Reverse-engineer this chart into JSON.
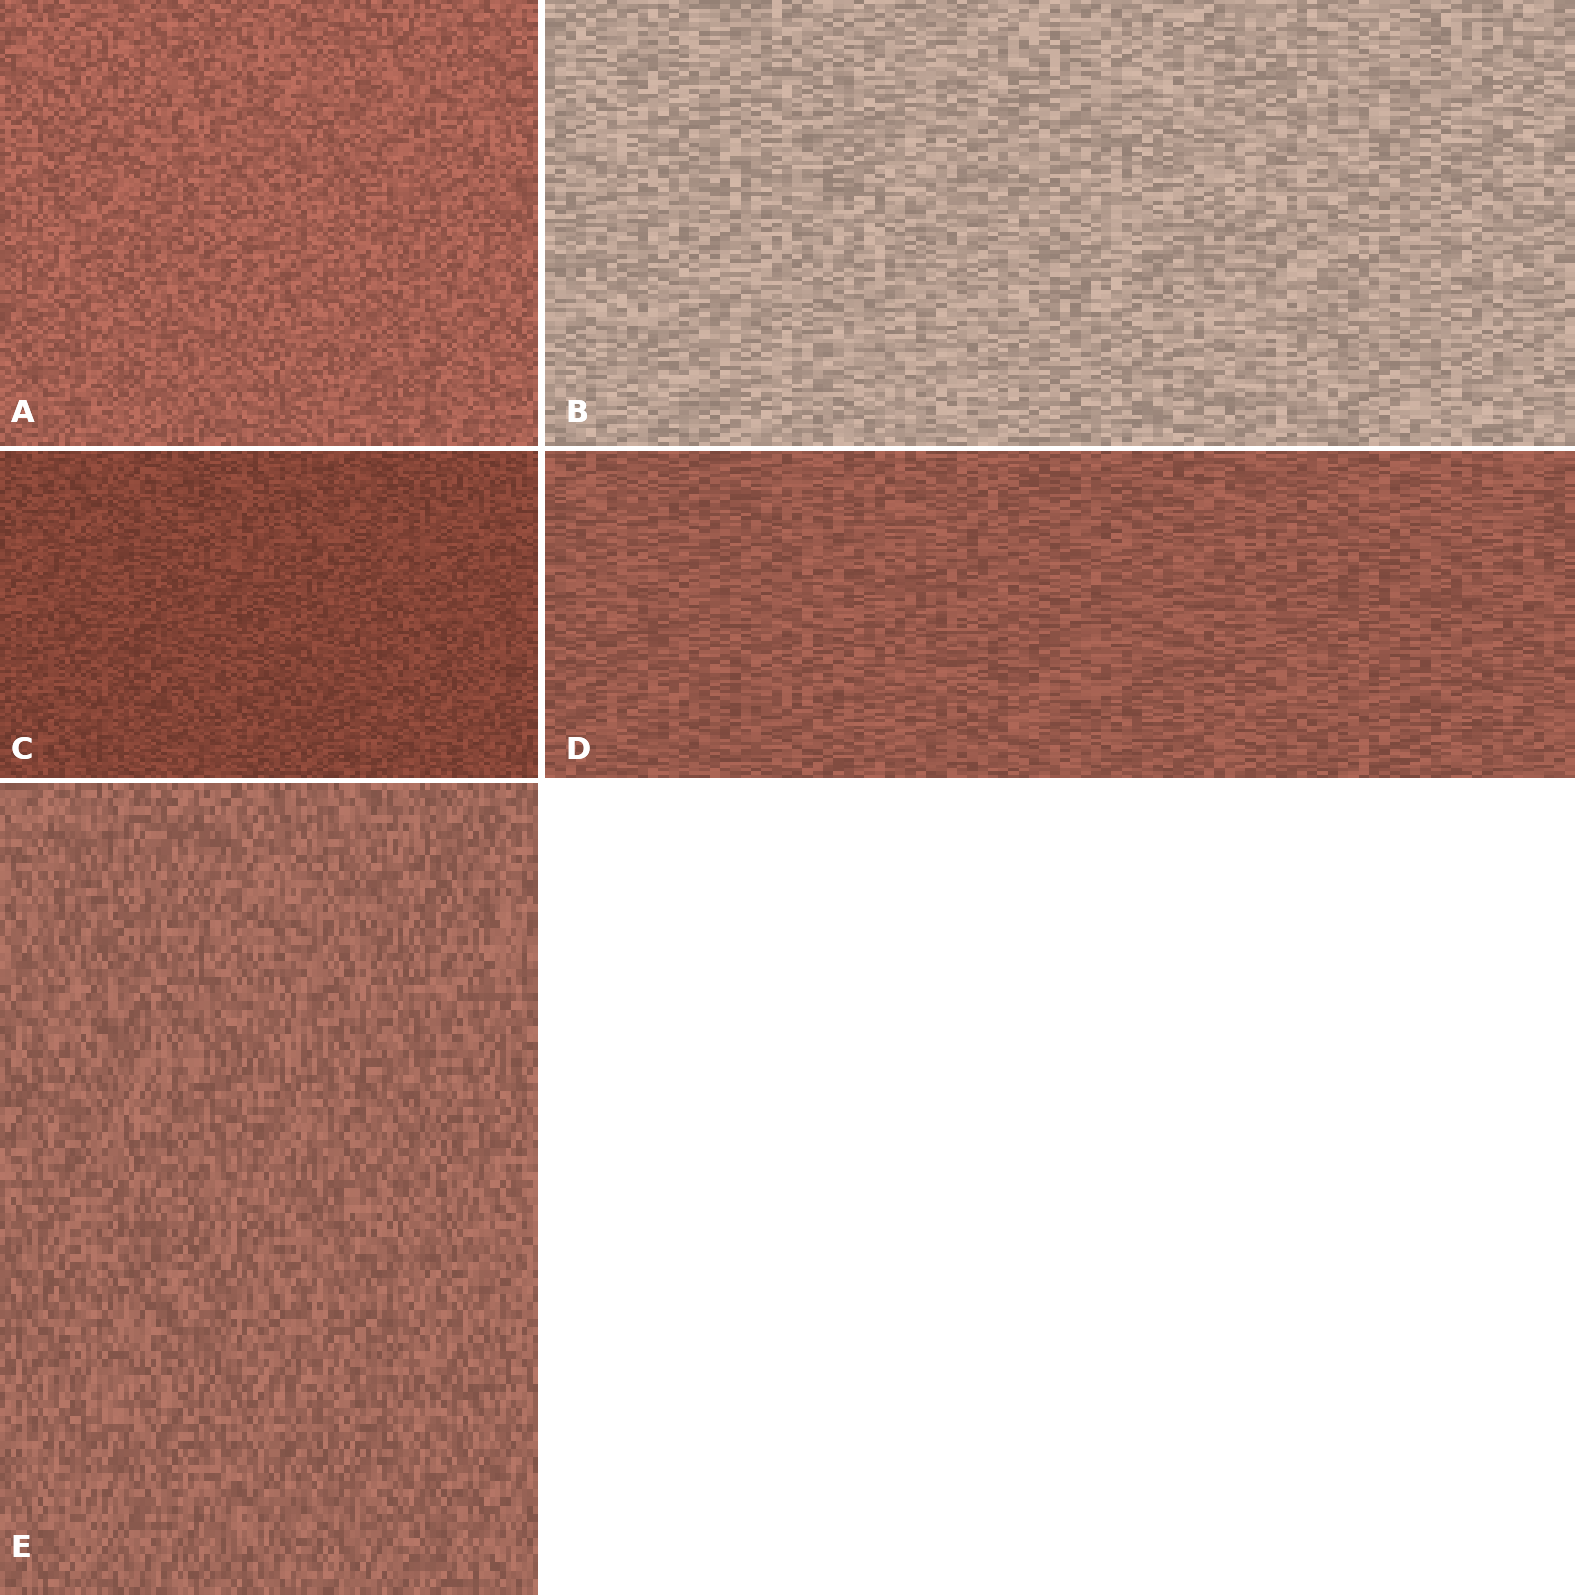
{
  "layout": {
    "rows": 3,
    "cols": 2,
    "figsize": [
      15.75,
      15.95
    ],
    "dpi": 100
  },
  "panels": [
    {
      "label": "A",
      "row": 0,
      "col": 0,
      "rowspan": 1,
      "colspan": 1
    },
    {
      "label": "B",
      "row": 0,
      "col": 1,
      "rowspan": 1,
      "colspan": 1
    },
    {
      "label": "C",
      "row": 1,
      "col": 0,
      "rowspan": 1,
      "colspan": 1
    },
    {
      "label": "D",
      "row": 1,
      "col": 1,
      "rowspan": 1,
      "colspan": 1
    },
    {
      "label": "E",
      "row": 2,
      "col": 0,
      "rowspan": 1,
      "colspan": 1
    }
  ],
  "label_color": "white",
  "label_fontsize": 22,
  "label_fontweight": "bold",
  "background_color": "white",
  "border_color": "white",
  "border_width": 4,
  "panel_colors": {
    "A": "#c07060",
    "B": "#d4b8a8",
    "C": "#9a5040",
    "D": "#b06858",
    "E": "#b87868"
  }
}
